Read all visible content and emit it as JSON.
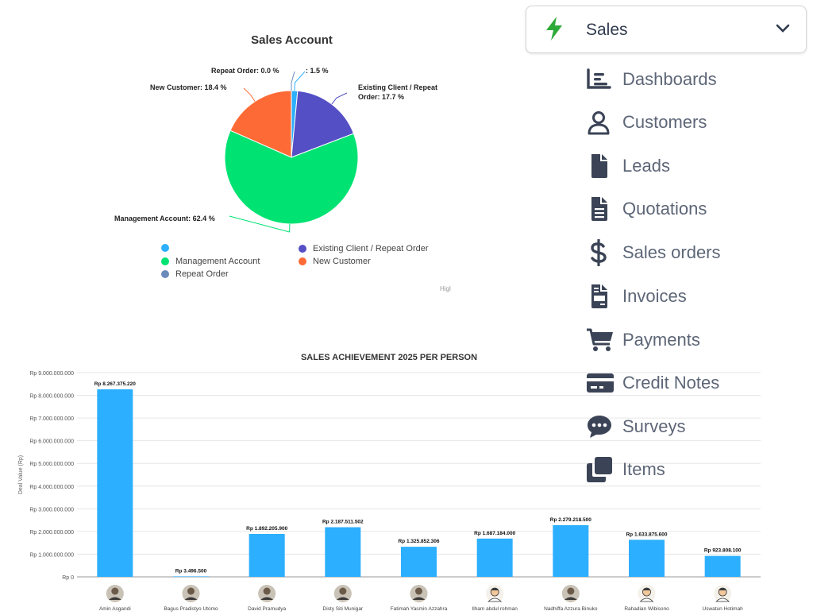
{
  "pie_chart": {
    "title": "Sales Account",
    "credit": "Higl",
    "slices": [
      {
        "name": "",
        "value": 1.5,
        "color": "#2caffe",
        "label": ": 1.5 %"
      },
      {
        "name": "Existing Client / Repeat Order",
        "value": 17.7,
        "color": "#544fc5",
        "label_line1": "Existing Client / Repeat",
        "label_line2": "Order: 17.7 %"
      },
      {
        "name": "Management Account",
        "value": 62.4,
        "color": "#00e272",
        "label": "Management Account: 62.4 %"
      },
      {
        "name": "New Customer",
        "value": 18.4,
        "color": "#fe6a35",
        "label": "New Customer: 18.4 %"
      },
      {
        "name": "Repeat Order",
        "value": 0.0,
        "color": "#6b8abc",
        "label": "Repeat Order: 0.0 %"
      }
    ]
  },
  "chart_data": [
    {
      "type": "pie",
      "title": "Sales Account",
      "categories": [
        "",
        "Existing Client / Repeat Order",
        "Management Account",
        "New Customer",
        "Repeat Order"
      ],
      "values": [
        1.5,
        17.7,
        62.4,
        18.4,
        0.0
      ],
      "legend": "bottom"
    },
    {
      "type": "bar",
      "title": "SALES ACHIEVEMENT 2025 PER PERSON",
      "ylabel": "Deal Value (Rp)",
      "xlabel": "",
      "ylim": [
        0,
        9000000000
      ],
      "grid": true,
      "categories": [
        "Amin Asgandi",
        "Bagus Pradistyo Utomo",
        "David Pramudya",
        "Disty Siti Munigar",
        "Fatimah Yasmin Azzahra",
        "Ilham abdul rohman",
        "Nadhiffa Azzura Binuko",
        "Rahadian Wibisono",
        "Uswatun Hotimah"
      ],
      "values": [
        8267375220,
        3496500,
        1892205900,
        2187511502,
        1325852306,
        1687184000,
        2279218500,
        1633875600,
        923808100
      ],
      "value_labels": [
        "Rp 8.267.375.220",
        "Rp 3.496.500",
        "Rp 1.892.205.900",
        "Rp 2.187.511.502",
        "Rp 1.325.852.306",
        "Rp 1.687.184.000",
        "Rp 2.279.218.500",
        "Rp 1.633.875.600",
        "Rp 923.808.100"
      ],
      "y_ticks": [
        "Rp 0",
        "Rp 1.000.000.000",
        "Rp 2.000.000.000",
        "Rp 3.000.000.000",
        "Rp 4.000.000.000",
        "Rp 5.000.000.000",
        "Rp 6.000.000.000",
        "Rp 7.000.000.000",
        "Rp 8.000.000.000",
        "Rp 9.000.000.000"
      ],
      "bar_color": "#2caffe",
      "avatars": [
        "photo",
        "photo",
        "photo",
        "photo",
        "photo",
        "cartoon",
        "photo",
        "cartoon",
        "cartoon"
      ]
    }
  ],
  "menu": {
    "header": {
      "label": "Sales",
      "icon": "bolt-icon",
      "accent": "#2eaa3a"
    },
    "items": [
      {
        "label": "Dashboards",
        "icon": "dashboard-icon"
      },
      {
        "label": "Customers",
        "icon": "user-icon"
      },
      {
        "label": "Leads",
        "icon": "file-icon"
      },
      {
        "label": "Quotations",
        "icon": "file-lines-icon"
      },
      {
        "label": "Sales orders",
        "icon": "dollar-icon"
      },
      {
        "label": "Invoices",
        "icon": "invoice-icon"
      },
      {
        "label": "Payments",
        "icon": "cart-icon"
      },
      {
        "label": "Credit Notes",
        "icon": "credit-card-icon"
      },
      {
        "label": "Surveys",
        "icon": "comment-dots-icon"
      },
      {
        "label": "Items",
        "icon": "clone-icon"
      }
    ]
  }
}
